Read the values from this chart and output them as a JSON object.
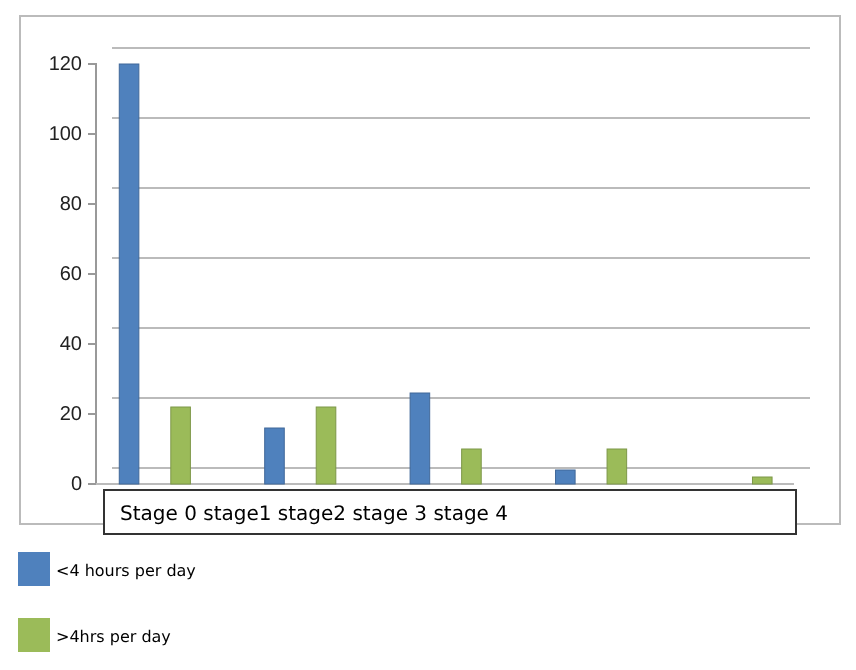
{
  "chart_data": {
    "type": "bar",
    "categories": [
      null,
      null,
      null,
      null,
      null
    ],
    "series": [
      {
        "name": "<4 hours per day",
        "color": "#4f81bd",
        "values": [
          120,
          16,
          26,
          4,
          0
        ]
      },
      {
        "color": "#c0504d",
        "values": [
          0,
          0,
          0,
          0,
          0
        ]
      },
      {
        "name": ">4hrs per day",
        "color": "#9bbb59",
        "values": [
          22,
          22,
          10,
          10,
          2
        ]
      },
      {
        "color": "#8064a2",
        "values": [
          0,
          0,
          0,
          0,
          0
        ]
      }
    ],
    "ylim": [
      0,
      120
    ],
    "yticks": [
      0,
      20,
      40,
      60,
      80,
      100,
      120
    ],
    "grid": "y",
    "legend": "bottom left",
    "annotations": [
      "Stage 0 stage1 stage2 stage 3 stage 4"
    ]
  }
}
